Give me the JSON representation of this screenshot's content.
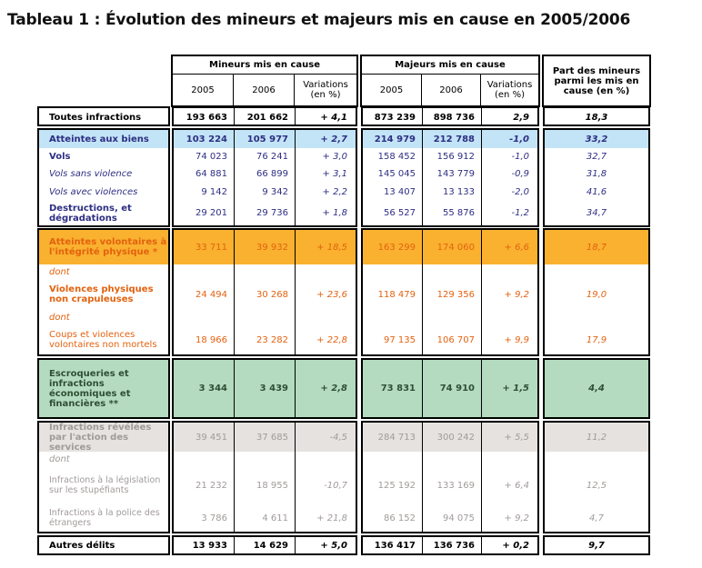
{
  "title": "Tableau 1 : Évolution des mineurs et majeurs mis en cause en 2005/2006",
  "table": {
    "column_groups": [
      "Mineurs mis en cause",
      "Majeurs mis en cause",
      "Part des mineurs parmi les mis en cause (en %)"
    ],
    "subheaders": [
      "2005",
      "2006",
      "Variations (en %)",
      "2005",
      "2006",
      "Variations (en %)"
    ],
    "rows": [
      [
        "Toutes infractions",
        "193 663",
        "201 662",
        "+ 4,1",
        "873 239",
        "898 736",
        "2,9",
        "18,3"
      ],
      [
        "Atteintes aux biens",
        "103 224",
        "105 977",
        "+ 2,7",
        "214 979",
        "212 788",
        "-1,0",
        "33,2"
      ],
      [
        "Vols",
        "74 023",
        "76 241",
        "+ 3,0",
        "158 452",
        "156 912",
        "-1,0",
        "32,7"
      ],
      [
        "Vols sans violence",
        "64 881",
        "66 899",
        "+ 3,1",
        "145 045",
        "143 779",
        "-0,9",
        "31,8"
      ],
      [
        "Vols avec violences",
        "9 142",
        "9 342",
        "+ 2,2",
        "13 407",
        "13 133",
        "-2,0",
        "41,6"
      ],
      [
        "Destructions, et dégradations",
        "29 201",
        "29 736",
        "+ 1,8",
        "56 527",
        "55 876",
        "-1,2",
        "34,7"
      ],
      [
        "Atteintes volontaires à l'intégrité physique *",
        "33 711",
        "39 932",
        "+ 18,5",
        "163 299",
        "174 060",
        "+ 6,6",
        "18,7"
      ],
      [
        "dont"
      ],
      [
        "Violences physiques non crapuleuses",
        "24 494",
        "30 268",
        "+ 23,6",
        "118 479",
        "129 356",
        "+ 9,2",
        "19,0"
      ],
      [
        "dont"
      ],
      [
        "Coups et violences volontaires non mortels",
        "18 966",
        "23 282",
        "+ 22,8",
        "97 135",
        "106 707",
        "+ 9,9",
        "17,9"
      ],
      [
        "Escroqueries et infractions économiques et financières **",
        "3 344",
        "3 439",
        "+ 2,8",
        "73 831",
        "74 910",
        "+ 1,5",
        "4,4"
      ],
      [
        "Infractions révélées par l'action des services",
        "39 451",
        "37 685",
        "-4,5",
        "284 713",
        "300 242",
        "+ 5,5",
        "11,2"
      ],
      [
        "dont"
      ],
      [
        "Infractions à la législation sur les stupéfiants",
        "21 232",
        "18 955",
        "-10,7",
        "125 192",
        "133 169",
        "+ 6,4",
        "12,5"
      ],
      [
        "Infractions à la police des étrangers",
        "3 786",
        "4 611",
        "+ 21,8",
        "86 152",
        "94 075",
        "+ 9,2",
        "4,7"
      ],
      [
        "Autres délits",
        "13 933",
        "14 629",
        "+ 5,0",
        "136 417",
        "136 736",
        "+ 0,2",
        "9,7"
      ]
    ]
  }
}
